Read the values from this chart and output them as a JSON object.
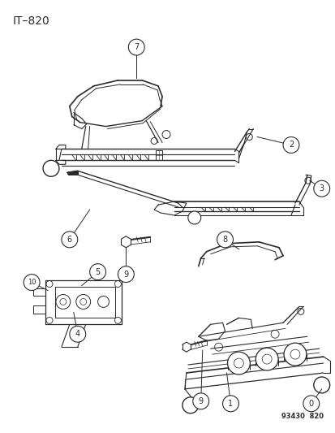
{
  "title": "IT–820",
  "subtitle": "93430  820",
  "background_color": "#ffffff",
  "line_color": "#2a2a2a",
  "figsize": [
    4.14,
    5.33
  ],
  "dpi": 100,
  "title_fontsize": 10,
  "subtitle_fontsize": 6
}
